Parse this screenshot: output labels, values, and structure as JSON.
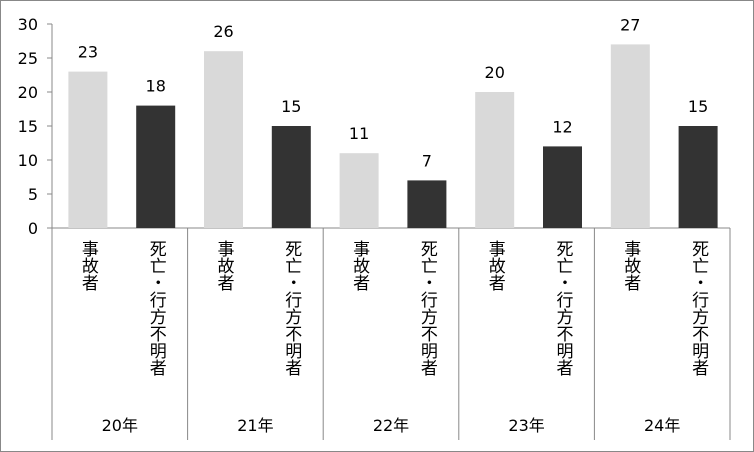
{
  "chart_data": {
    "type": "bar",
    "categories": [
      "20年",
      "21年",
      "22年",
      "23年",
      "24年"
    ],
    "series": [
      {
        "name": "事故者",
        "color": "#d9d9d9",
        "values": [
          23,
          26,
          11,
          20,
          27
        ]
      },
      {
        "name": "死亡・行方不明者",
        "color": "#333333",
        "values": [
          18,
          15,
          7,
          12,
          15
        ]
      }
    ],
    "ylim": [
      0,
      30
    ],
    "yticks": [
      0,
      5,
      10,
      15,
      20,
      25,
      30
    ],
    "grid": false
  }
}
